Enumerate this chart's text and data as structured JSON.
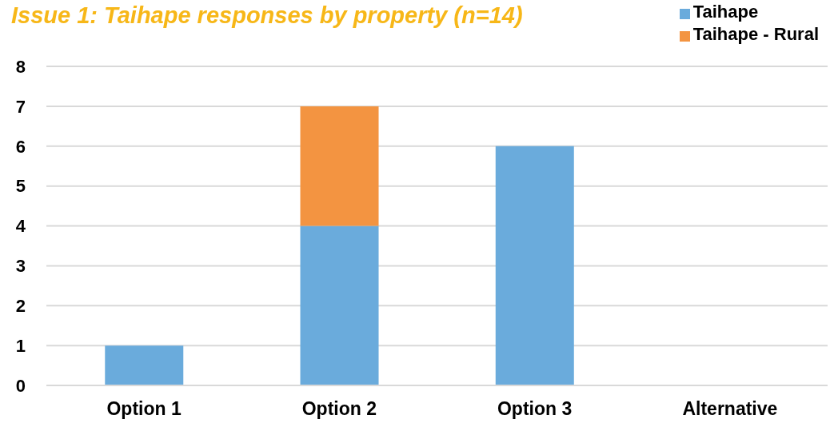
{
  "chart_data": {
    "type": "bar",
    "title": "Issue 1: Taihape responses by property (n=14)",
    "categories": [
      "Option 1",
      "Option 2",
      "Option 3",
      "Alternative"
    ],
    "series": [
      {
        "name": "Taihape",
        "color": "#6aabdc",
        "values": [
          1,
          4,
          6,
          0
        ]
      },
      {
        "name": "Taihape - Rural",
        "color": "#f39441",
        "values": [
          0,
          3,
          0,
          0
        ]
      }
    ],
    "stacked": true,
    "ylim": [
      0,
      8
    ],
    "yticks": [
      0,
      1,
      2,
      3,
      4,
      5,
      6,
      7,
      8
    ],
    "grid": "y",
    "legend": "top right"
  }
}
